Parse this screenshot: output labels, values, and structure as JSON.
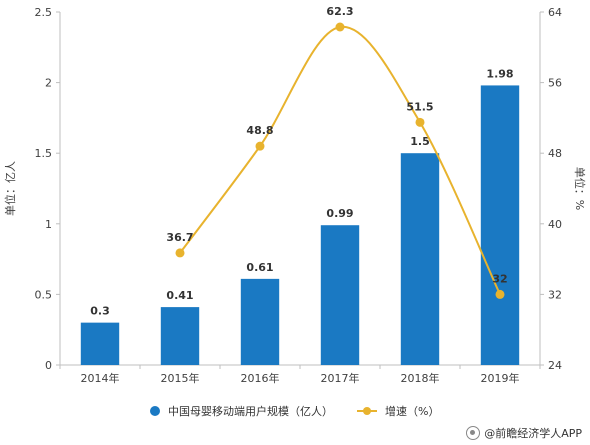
{
  "chart_data": {
    "type": "bar",
    "categories": [
      "2014年",
      "2015年",
      "2016年",
      "2017年",
      "2018年",
      "2019年"
    ],
    "series": [
      {
        "name": "中国母婴移动端用户规模（亿人）",
        "type": "bar",
        "axis": "left",
        "values": [
          0.3,
          0.41,
          0.61,
          0.99,
          1.5,
          1.98
        ],
        "labels": [
          "0.3",
          "0.41",
          "0.61",
          "0.99",
          "1.5",
          "1.98"
        ]
      },
      {
        "name": "增速（%）",
        "type": "line",
        "axis": "right",
        "values": [
          null,
          36.7,
          48.8,
          62.3,
          51.5,
          32
        ],
        "labels": [
          "",
          "36.7",
          "48.8",
          "62.3",
          "51.5",
          "32"
        ]
      }
    ],
    "ylabel": "单位：亿人",
    "y2label": "单位：%",
    "ylim": [
      0,
      2.5
    ],
    "y2lim": [
      24,
      64
    ],
    "yticks": [
      "0",
      "0.5",
      "1",
      "1.5",
      "2",
      "2.5"
    ],
    "y2ticks": [
      "24",
      "32",
      "40",
      "48",
      "56",
      "64"
    ],
    "grid": false,
    "legend_position": "bottom"
  },
  "colors": {
    "bar": "#1a79c3",
    "line": "#e8b32e",
    "axis": "#bfbfbf"
  },
  "legend": {
    "bar_label": "中国母婴移动端用户规模（亿人）",
    "line_label": "增速（%）"
  },
  "footer": {
    "text": "@前瞻经济学人APP",
    "icon": "qianzhan-logo-icon"
  }
}
